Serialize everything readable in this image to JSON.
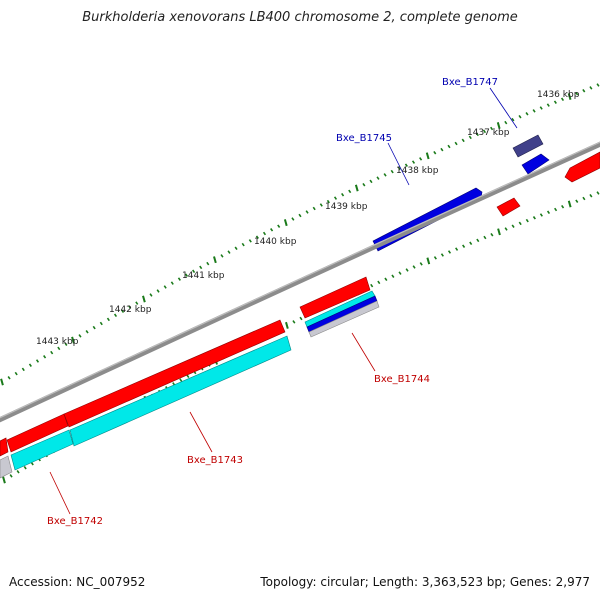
{
  "title": "Burkholderia xenovorans LB400 chromosome 2, complete genome",
  "footer": {
    "accession": "Accession: NC_007952",
    "stats": "Topology: circular; Length: 3,363,523 bp; Genes: 2,977"
  },
  "colors": {
    "backbone": "#8c8c8c",
    "forward_gene": "#ff0000",
    "reverse_gene": "#0000e0",
    "cds_forward": "#00e8e8",
    "cds_grey": "#c8c8d0",
    "dark_gene": "#40408a",
    "tick": "#1a7a1a",
    "label_forward": "#c00000",
    "label_reverse": "#0000b0"
  },
  "scale_labels": [
    {
      "text": "1436 kbp"
    },
    {
      "text": "1437 kbp"
    },
    {
      "text": "1438 kbp"
    },
    {
      "text": "1439 kbp"
    },
    {
      "text": "1440 kbp"
    },
    {
      "text": "1441 kbp"
    },
    {
      "text": "1442 kbp"
    },
    {
      "text": "1443 kbp"
    }
  ],
  "gene_labels": [
    {
      "text": "Bxe_B1747",
      "strand": "reverse"
    },
    {
      "text": "Bxe_B1745",
      "strand": "reverse"
    },
    {
      "text": "Bxe_B1744",
      "strand": "forward"
    },
    {
      "text": "Bxe_B1743",
      "strand": "forward"
    },
    {
      "text": "Bxe_B1742",
      "strand": "forward"
    }
  ]
}
